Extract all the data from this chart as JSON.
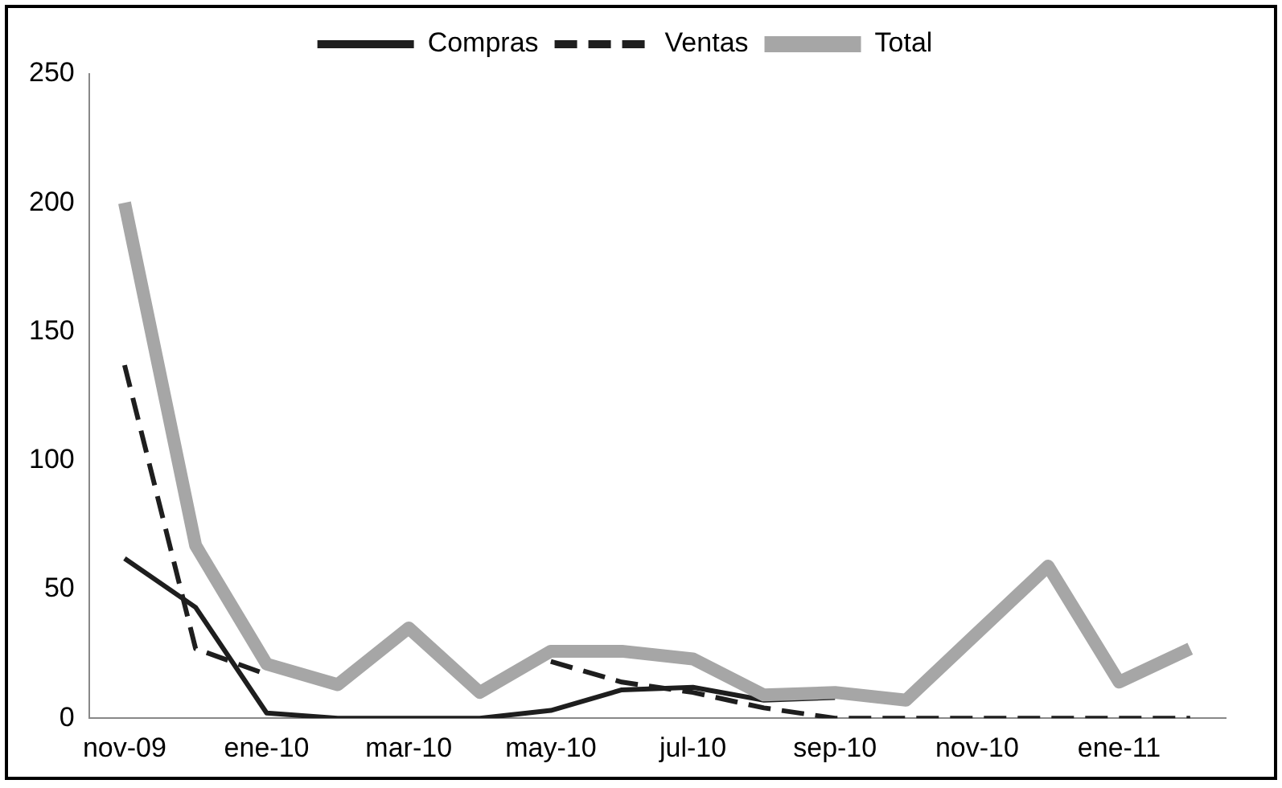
{
  "chart_data": {
    "type": "line",
    "categories": [
      "nov-09",
      null,
      "ene-10",
      null,
      "mar-10",
      null,
      "may-10",
      null,
      "jul-10",
      null,
      "sep-10",
      null,
      "nov-10",
      null,
      "ene-11",
      null
    ],
    "series": [
      {
        "name": "Compras",
        "color": "#1e1e1e",
        "line_style": "solid",
        "values": [
          62,
          43,
          2,
          0,
          0,
          0,
          3,
          11,
          12,
          7,
          8,
          null,
          null,
          null,
          null,
          null
        ]
      },
      {
        "name": "Ventas",
        "color": "#1e1e1e",
        "line_style": "dashed",
        "values": [
          137,
          27,
          17,
          null,
          null,
          null,
          22,
          14,
          10,
          4,
          0,
          0,
          0,
          0,
          0,
          0
        ]
      },
      {
        "name": "Total",
        "color": "#a6a6a6",
        "line_style": "solid",
        "values": [
          200,
          67,
          21,
          13,
          35,
          10,
          26,
          26,
          23,
          9,
          10,
          7,
          33,
          59,
          14,
          27
        ]
      }
    ],
    "ylim": [
      0,
      250
    ],
    "yticks": [
      0,
      50,
      100,
      150,
      200,
      250
    ],
    "grid": false,
    "legend": "top"
  }
}
